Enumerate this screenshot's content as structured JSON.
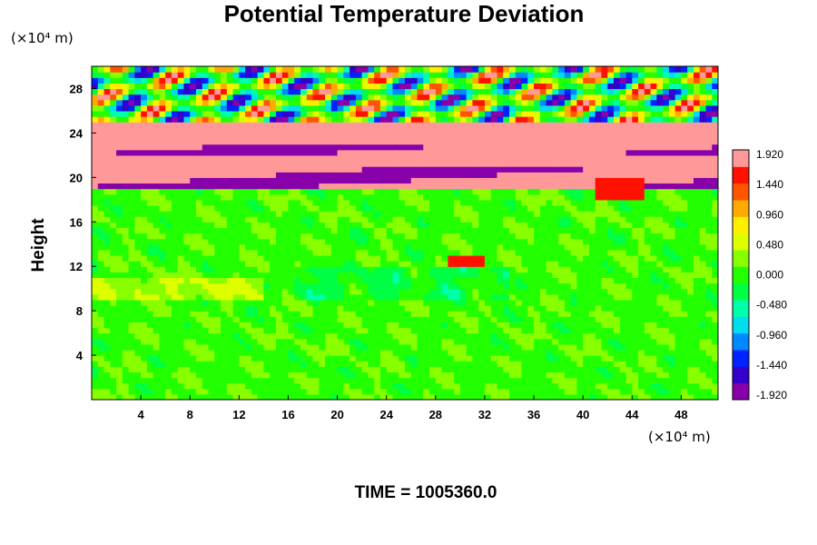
{
  "title": "Potential Temperature Deviation",
  "y_unit": "(×10⁴ m)",
  "x_unit": "(×10⁴ m)",
  "time_label": "TIME = 1005360.0",
  "chart_data": {
    "type": "heatmap",
    "title": "Potential Temperature Deviation",
    "xlabel": "",
    "ylabel": "Height",
    "xlim": [
      0,
      51
    ],
    "ylim": [
      0,
      30
    ],
    "x_ticks": [
      4,
      8,
      12,
      16,
      20,
      24,
      28,
      32,
      36,
      40,
      44,
      48
    ],
    "y_ticks": [
      4,
      8,
      12,
      16,
      20,
      24,
      28
    ],
    "colorbar": {
      "placement": "right",
      "ticks": [
        "1.920",
        "1.440",
        "0.960",
        "0.480",
        "0.000",
        "-0.480",
        "-0.960",
        "-1.440",
        "-1.920"
      ],
      "range": [
        -1.92,
        1.92
      ],
      "palette": [
        "#8800aa",
        "#3300cc",
        "#0022ff",
        "#0088ff",
        "#00ddee",
        "#00ffaa",
        "#00ff44",
        "#22ff00",
        "#88ff00",
        "#ddff00",
        "#ffee00",
        "#ffaa00",
        "#ff5500",
        "#ff1100",
        "#ff9999"
      ]
    },
    "regions": [
      {
        "x": [
          0,
          51
        ],
        "y": [
          0,
          19
        ],
        "value": 0.1,
        "description": "near-zero background below ~19"
      },
      {
        "x": [
          0,
          51
        ],
        "y": [
          19.5,
          21
        ],
        "value": -1.9,
        "description": "strong negative layer"
      },
      {
        "x": [
          0,
          51
        ],
        "y": [
          21,
          22
        ],
        "value": 1.92,
        "description": "strong positive layer"
      },
      {
        "x": [
          0,
          51
        ],
        "y": [
          22,
          23.2
        ],
        "value": -1.9,
        "description": "strong negative layer"
      },
      {
        "x": [
          0,
          51
        ],
        "y": [
          23.2,
          25
        ],
        "value": 1.92,
        "description": "strong positive layer"
      },
      {
        "x": [
          0,
          51
        ],
        "y": [
          25,
          30
        ],
        "value": 0.0,
        "description": "oscillating waves"
      },
      {
        "x": [
          29,
          32
        ],
        "y": [
          12,
          13
        ],
        "value": 1.44,
        "description": "local positive patch"
      },
      {
        "x": [
          41,
          45
        ],
        "y": [
          18,
          20
        ],
        "value": 1.44,
        "description": "local positive patch"
      }
    ]
  }
}
